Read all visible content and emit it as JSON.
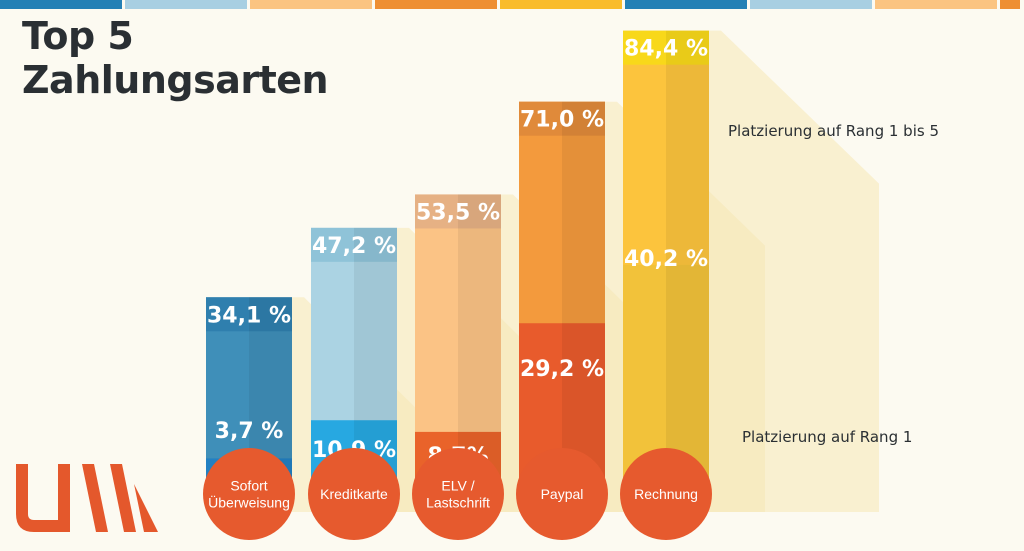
{
  "title": "Top 5\nZahlungsarten",
  "legend": {
    "upper": "Platzierung auf Rang 1 bis 5",
    "lower": "Platzierung auf Rang 1"
  },
  "colors": {
    "background": "#fcfaf1",
    "topbar": [
      "#2480b5",
      "#a8cfe2",
      "#fbc481",
      "#ee8f33",
      "#f9bc2c",
      "#2480b5",
      "#a8cfe2",
      "#fbc481",
      "#ee8f33"
    ],
    "logo": "#e4582c",
    "circle": "#e65a2e"
  },
  "chart_data": {
    "type": "bar",
    "categories": [
      "Sofort\nÜberweisung",
      "Kreditkarte",
      "ELV /\nLastschrift",
      "Paypal",
      "Rechnung"
    ],
    "series": [
      {
        "name": "Platzierung auf Rang 1 bis 5",
        "values": [
          34.1,
          47.2,
          53.5,
          71.0,
          84.4
        ],
        "labels": [
          "34,1 %",
          "47,2 %",
          "53,5 %",
          "71,0 %",
          "84,4 %"
        ]
      },
      {
        "name": "Platzierung auf Rang 1",
        "values": [
          3.7,
          10.9,
          8.7,
          29.2,
          40.2
        ],
        "labels": [
          "3,7 %",
          "10,9 %",
          "8,7%",
          "29,2 %",
          "40,2 %"
        ]
      }
    ],
    "bar_colors": [
      {
        "upper": "#3f8fb9",
        "lower": "#2380c2",
        "cap": "#2f7fae",
        "upper_label": "#ffffff"
      },
      {
        "upper": "#abd3e3",
        "lower": "#27a8e1",
        "cap": "#8fc3d8",
        "upper_label": "#ffffff"
      },
      {
        "upper": "#fbc385",
        "lower": "#e9632a",
        "cap": "#e6b184",
        "upper_label": "#ffffff"
      },
      {
        "upper": "#f39a3d",
        "lower": "#e85b2c",
        "cap": "#e08a3a",
        "upper_label": "#ffffff"
      },
      {
        "upper": "#fcc43d",
        "lower": "#f2c23a",
        "cap": "#f8d81a",
        "upper_label": "#ffffff"
      }
    ],
    "shadow_color": "#f6e7b4",
    "ylim": [
      0,
      100
    ]
  }
}
